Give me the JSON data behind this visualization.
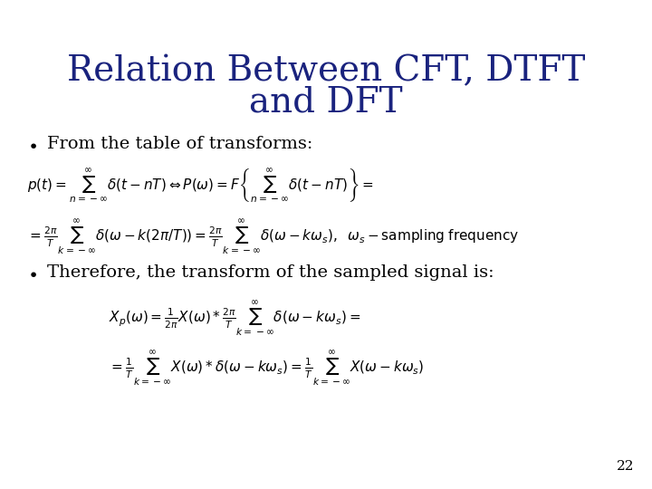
{
  "title_line1": "Relation Between CFT, DTFT",
  "title_line2": "and DFT",
  "title_color": "#1a237e",
  "title_fontsize": 28,
  "bg_color": "#ffffff",
  "bullet1": "From the table of transforms:",
  "bullet2": "Therefore, the transform of the sampled signal is:",
  "bullet_fontsize": 14,
  "bullet_color": "#000000",
  "eq_fontsize": 11,
  "eq_color": "#000000",
  "page_number": "22",
  "page_fontsize": 11
}
